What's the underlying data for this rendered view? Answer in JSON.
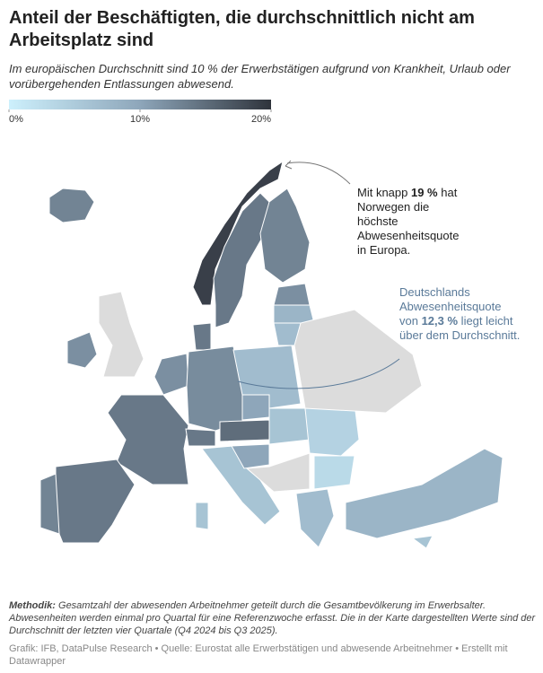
{
  "header": {
    "title": "Anteil der Beschäftigten, die durchschnittlich nicht am Arbeitsplatz sind",
    "subtitle": "Im europäischen Durchschnitt sind 10 % der Erwerbstätigen aufgrund von Krankheit, Urlaub oder vorübergehenden Entlassungen abwesend."
  },
  "map": {
    "lim": [
      0,
      20
    ],
    "colors": [
      "#cdf0fc",
      "#8ea6ba",
      "#2f343c"
    ],
    "no_data_color": "#dcdcdc",
    "legend_ticks": [
      {
        "value": 0,
        "label": "0%"
      },
      {
        "value": 10,
        "label": "10%"
      },
      {
        "value": 20,
        "label": "20%"
      }
    ],
    "values": [
      13,
      19,
      14,
      13,
      12,
      8,
      7,
      12,
      null,
      14,
      12,
      12.3,
      7,
      14,
      14,
      13,
      14,
      15,
      10,
      6,
      6,
      6,
      10,
      null,
      4,
      3,
      7,
      8,
      null,
      6
    ]
  },
  "annotations": [
    {
      "before": "Mit knapp ",
      "bold": "19 %",
      "after": " hat Norwegen die höchste Abwesenheitsquote in Europa."
    },
    {
      "before": "Deutschlands Abwesenheitsquote von ",
      "bold": "12,3 %",
      "after": " liegt leicht über dem Durchschnitt."
    }
  ],
  "footer": {
    "methodik_label": "Methodik:",
    "methodik": " Gesamtzahl der abwesenden Arbeitnehmer geteilt durch die Gesamtbevölkerung im Erwerbsalter. Abwesenheiten werden einmal pro Quartal für eine Referenzwoche erfasst. Die in der Karte dargestellten Werte sind der Durchschnitt der letzten vier Quartale (Q4 2024 bis Q3 2025).",
    "credit": "Grafik: IFB, DataPulse Research • Quelle: Eurostat alle Erwerbstätigen und abwesende Arbeitnehmer • Erstellt mit Datawrapper"
  }
}
